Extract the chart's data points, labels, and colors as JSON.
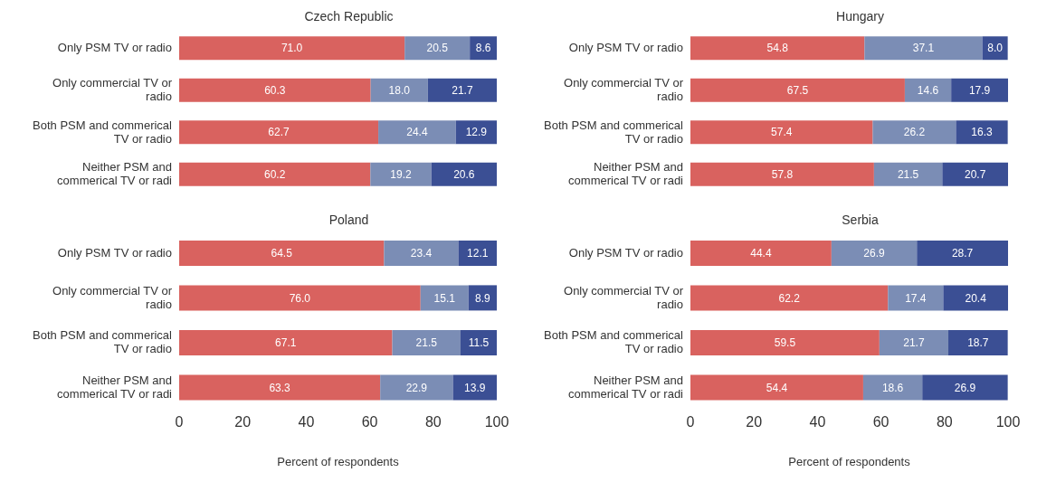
{
  "chart_data": [
    {
      "type": "bar",
      "orientation": "horizontal",
      "stacked": true,
      "title": "Czech Republic",
      "categories": [
        "Only PSM TV or radio",
        "Only commercial TV or radio",
        "Both PSM and commerical TV or radio",
        "Neither PSM and commerical TV or radi"
      ],
      "series": [
        {
          "color": "#d9625f",
          "values": [
            71.0,
            60.3,
            62.7,
            60.2
          ],
          "value_labels": [
            "71.0",
            "60.3",
            "62.7",
            "60.2"
          ]
        },
        {
          "color": "#7b8db5",
          "values": [
            20.5,
            18.0,
            24.4,
            19.2
          ],
          "value_labels": [
            "20.5",
            "18.0",
            "24.4",
            "19.2"
          ]
        },
        {
          "color": "#3b4f94",
          "values": [
            8.6,
            21.7,
            12.9,
            20.6
          ],
          "value_labels": [
            "8.6",
            "21.7",
            "12.9",
            "20.6"
          ]
        }
      ],
      "xlim": [
        0,
        100
      ],
      "xticks": [
        0,
        20,
        40,
        60,
        80,
        100
      ],
      "tick_labels": "y"
    },
    {
      "type": "bar",
      "orientation": "horizontal",
      "stacked": true,
      "title": "Hungary",
      "categories": [
        "Only PSM TV or radio",
        "Only commercial TV or radio",
        "Both PSM and commerical TV or radio",
        "Neither PSM and commerical TV or radi"
      ],
      "series": [
        {
          "color": "#d9625f",
          "values": [
            54.8,
            67.5,
            57.4,
            57.8
          ],
          "value_labels": [
            "54.8",
            "67.5",
            "57.4",
            "57.8"
          ]
        },
        {
          "color": "#7b8db5",
          "values": [
            37.1,
            14.6,
            26.2,
            21.5
          ],
          "value_labels": [
            "37.1",
            "14.6",
            "26.2",
            "21.5"
          ]
        },
        {
          "color": "#3b4f94",
          "values": [
            8.0,
            17.9,
            16.3,
            20.7
          ],
          "value_labels": [
            "8.0",
            "17.9",
            "16.3",
            "20.7"
          ]
        }
      ],
      "xlim": [
        0,
        100
      ],
      "xticks": [
        0,
        20,
        40,
        60,
        80,
        100
      ],
      "tick_labels": "y"
    },
    {
      "type": "bar",
      "orientation": "horizontal",
      "stacked": true,
      "title": "Poland",
      "xlabel": "Percent of respondents",
      "categories": [
        "Only PSM TV or radio",
        "Only commercial TV or radio",
        "Both PSM and commerical TV or radio",
        "Neither PSM and commerical TV or radi"
      ],
      "series": [
        {
          "color": "#d9625f",
          "values": [
            64.5,
            76.0,
            67.1,
            63.3
          ],
          "value_labels": [
            "64.5",
            "76.0",
            "67.1",
            "63.3"
          ]
        },
        {
          "color": "#7b8db5",
          "values": [
            23.4,
            15.1,
            21.5,
            22.9
          ],
          "value_labels": [
            "23.4",
            "15.1",
            "21.5",
            "22.9"
          ]
        },
        {
          "color": "#3b4f94",
          "values": [
            12.1,
            8.9,
            11.5,
            13.9
          ],
          "value_labels": [
            "12.1",
            "8.9",
            "11.5",
            "13.9"
          ]
        }
      ],
      "xlim": [
        0,
        100
      ],
      "xticks": [
        0,
        20,
        40,
        60,
        80,
        100
      ]
    },
    {
      "type": "bar",
      "orientation": "horizontal",
      "stacked": true,
      "title": "Serbia",
      "xlabel": "Percent of respondents",
      "categories": [
        "Only PSM TV or radio",
        "Only commercial TV or radio",
        "Both PSM and commerical TV or radio",
        "Neither PSM and commerical TV or radi"
      ],
      "series": [
        {
          "color": "#d9625f",
          "values": [
            44.4,
            62.2,
            59.5,
            54.4
          ],
          "value_labels": [
            "44.4",
            "62.2",
            "59.5",
            "54.4"
          ]
        },
        {
          "color": "#7b8db5",
          "values": [
            26.9,
            17.4,
            21.7,
            18.6
          ],
          "value_labels": [
            "26.9",
            "17.4",
            "21.7",
            "18.6"
          ]
        },
        {
          "color": "#3b4f94",
          "values": [
            28.7,
            20.4,
            18.7,
            26.9
          ],
          "value_labels": [
            "28.7",
            "20.4",
            "18.7",
            "26.9"
          ]
        }
      ],
      "xlim": [
        0,
        100
      ],
      "xticks": [
        0,
        20,
        40,
        60,
        80,
        100
      ]
    }
  ]
}
